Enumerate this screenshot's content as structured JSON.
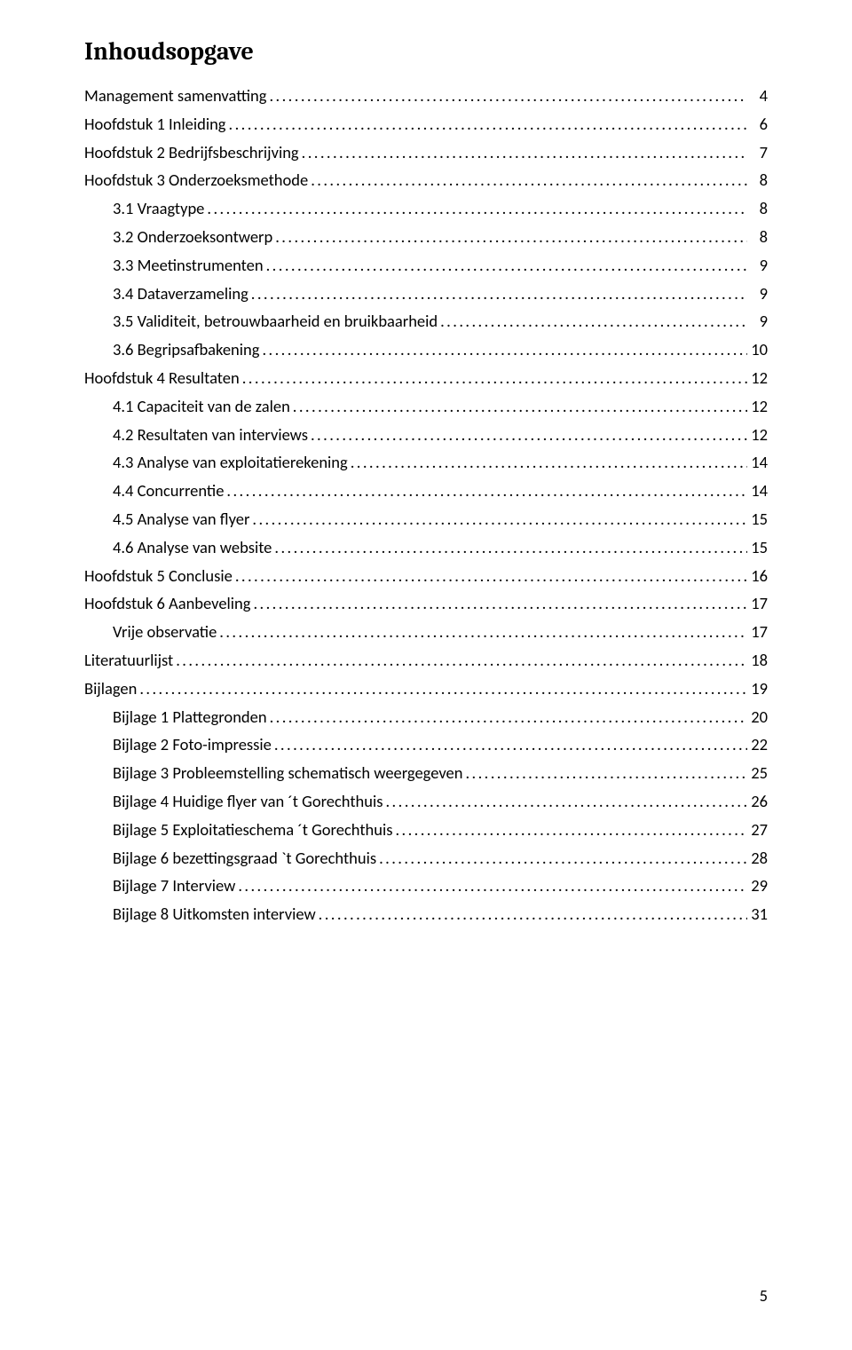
{
  "title": "Inhoudsopgave",
  "page_number": "5",
  "toc": [
    {
      "label": "Management samenvatting",
      "page": "4",
      "indent": 0
    },
    {
      "label": "Hoofdstuk 1 Inleiding",
      "page": "6",
      "indent": 0
    },
    {
      "label": "Hoofdstuk 2 Bedrijfsbeschrijving",
      "page": "7",
      "indent": 0
    },
    {
      "label": "Hoofdstuk 3 Onderzoeksmethode",
      "page": "8",
      "indent": 0
    },
    {
      "label": "3.1 Vraagtype",
      "page": "8",
      "indent": 1
    },
    {
      "label": "3.2 Onderzoeksontwerp",
      "page": "8",
      "indent": 1
    },
    {
      "label": "3.3 Meetinstrumenten",
      "page": "9",
      "indent": 1
    },
    {
      "label": "3.4 Dataverzameling",
      "page": "9",
      "indent": 1
    },
    {
      "label": "3.5 Validiteit, betrouwbaarheid en bruikbaarheid",
      "page": "9",
      "indent": 1
    },
    {
      "label": "3.6 Begripsafbakening",
      "page": "10",
      "indent": 1
    },
    {
      "label": "Hoofdstuk 4 Resultaten",
      "page": "12",
      "indent": 0
    },
    {
      "label": "4.1 Capaciteit van de zalen",
      "page": "12",
      "indent": 1
    },
    {
      "label": "4.2 Resultaten van interviews",
      "page": "12",
      "indent": 1
    },
    {
      "label": "4.3 Analyse van exploitatierekening",
      "page": "14",
      "indent": 1
    },
    {
      "label": "4.4 Concurrentie",
      "page": "14",
      "indent": 1
    },
    {
      "label": "4.5 Analyse van flyer",
      "page": "15",
      "indent": 1
    },
    {
      "label": "4.6 Analyse van website",
      "page": "15",
      "indent": 1
    },
    {
      "label": "Hoofdstuk 5 Conclusie",
      "page": "16",
      "indent": 0
    },
    {
      "label": "Hoofdstuk 6 Aanbeveling",
      "page": "17",
      "indent": 0
    },
    {
      "label": "Vrije observatie",
      "page": "17",
      "indent": 1
    },
    {
      "label": "Literatuurlijst",
      "page": "18",
      "indent": 0
    },
    {
      "label": "Bijlagen",
      "page": "19",
      "indent": 0
    },
    {
      "label": "Bijlage 1 Plattegronden",
      "page": "20",
      "indent": 1
    },
    {
      "label": "Bijlage 2 Foto-impressie",
      "page": "22",
      "indent": 1
    },
    {
      "label": "Bijlage 3 Probleemstelling schematisch weergegeven",
      "page": "25",
      "indent": 1
    },
    {
      "label": "Bijlage 4 Huidige flyer van ´t Gorechthuis",
      "page": "26",
      "indent": 1
    },
    {
      "label": "Bijlage 5 Exploitatieschema ´t Gorechthuis",
      "page": "27",
      "indent": 1
    },
    {
      "label": "Bijlage 6 bezettingsgraad `t Gorechthuis",
      "page": "28",
      "indent": 1
    },
    {
      "label": "Bijlage 7 Interview",
      "page": "29",
      "indent": 1
    },
    {
      "label": "Bijlage 8 Uitkomsten interview",
      "page": "31",
      "indent": 1
    }
  ]
}
